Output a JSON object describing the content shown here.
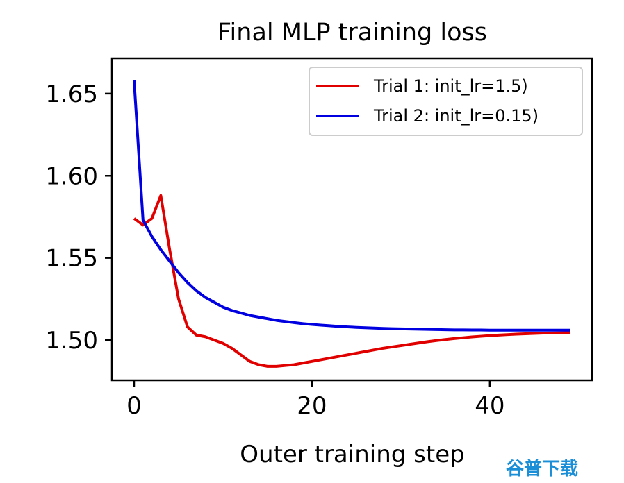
{
  "chart_data": {
    "type": "line",
    "title": "Final MLP training loss",
    "xlabel": "Outer training step",
    "ylabel": "",
    "xlim": [
      -2.5,
      51.5
    ],
    "ylim": [
      1.4755,
      1.6715
    ],
    "xticks": [
      0,
      20,
      40
    ],
    "yticks": [
      1.5,
      1.55,
      1.6,
      1.65
    ],
    "xtick_labels": [
      "0",
      "20",
      "40"
    ],
    "ytick_labels": [
      "1.50",
      "1.55",
      "1.60",
      "1.65"
    ],
    "grid": false,
    "legend_position": "top-right",
    "series": [
      {
        "name": "Trial 1: init_lr=1.5)",
        "color": "#e00000",
        "x": [
          0,
          1,
          2,
          3,
          4,
          5,
          6,
          7,
          8,
          9,
          10,
          11,
          12,
          13,
          14,
          15,
          16,
          17,
          18,
          19,
          20,
          21,
          22,
          23,
          24,
          25,
          26,
          27,
          28,
          29,
          30,
          31,
          32,
          33,
          34,
          35,
          36,
          37,
          38,
          39,
          40,
          41,
          42,
          43,
          44,
          45,
          46,
          47,
          48,
          49
        ],
        "y": [
          1.574,
          1.57,
          1.574,
          1.588,
          1.555,
          1.525,
          1.508,
          1.503,
          1.502,
          1.5,
          1.498,
          1.495,
          1.491,
          1.487,
          1.485,
          1.484,
          1.484,
          1.4845,
          1.485,
          1.486,
          1.487,
          1.488,
          1.489,
          1.49,
          1.491,
          1.492,
          1.493,
          1.494,
          1.495,
          1.4958,
          1.4966,
          1.4974,
          1.4982,
          1.499,
          1.4997,
          1.5003,
          1.5009,
          1.5014,
          1.5019,
          1.5023,
          1.5027,
          1.503,
          1.5033,
          1.5036,
          1.5038,
          1.504,
          1.5042,
          1.5043,
          1.5044,
          1.5045
        ]
      },
      {
        "name": "Trial 2: init_lr=0.15)",
        "color": "#0000e0",
        "x": [
          0,
          1,
          2,
          3,
          4,
          5,
          6,
          7,
          8,
          9,
          10,
          11,
          12,
          13,
          14,
          15,
          16,
          17,
          18,
          19,
          20,
          21,
          22,
          23,
          24,
          25,
          26,
          27,
          28,
          29,
          30,
          31,
          32,
          33,
          34,
          35,
          36,
          37,
          38,
          39,
          40,
          41,
          42,
          43,
          44,
          45,
          46,
          47,
          48,
          49
        ],
        "y": [
          1.658,
          1.573,
          1.563,
          1.555,
          1.548,
          1.541,
          1.535,
          1.53,
          1.526,
          1.523,
          1.52,
          1.518,
          1.5165,
          1.515,
          1.514,
          1.513,
          1.512,
          1.5113,
          1.5106,
          1.51,
          1.5095,
          1.5091,
          1.5087,
          1.5083,
          1.508,
          1.5077,
          1.5075,
          1.5073,
          1.5071,
          1.5069,
          1.5068,
          1.5067,
          1.5066,
          1.5065,
          1.5064,
          1.5063,
          1.5062,
          1.5062,
          1.5061,
          1.5061,
          1.506,
          1.506,
          1.506,
          1.506,
          1.506,
          1.506,
          1.506,
          1.506,
          1.506,
          1.506
        ]
      }
    ]
  },
  "watermark": {
    "text": "谷普下载",
    "color": "#1a8fd8"
  }
}
